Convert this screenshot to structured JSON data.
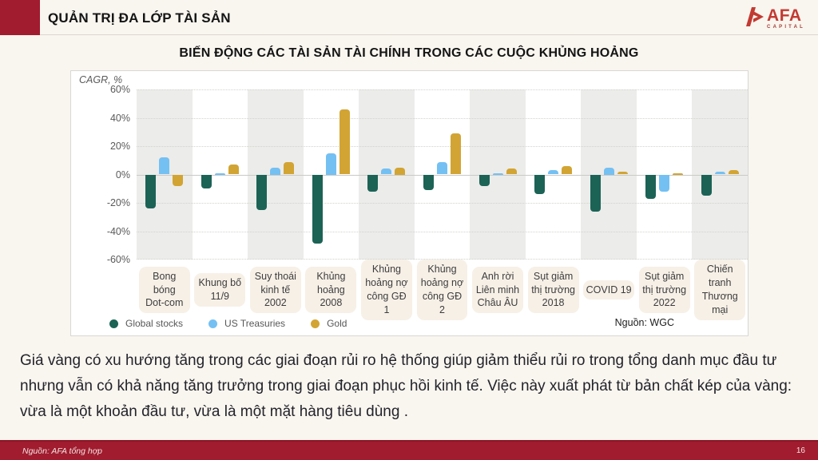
{
  "header": {
    "title": "QUẢN TRỊ ĐA LỚP TÀI SẢN",
    "logo": {
      "main": "AFA",
      "sub": "CAPITAL"
    }
  },
  "chart": {
    "title": "BIẾN ĐỘNG CÁC TÀI SẢN TÀI CHÍNH TRONG CÁC CUỘC KHỦNG HOẢNG",
    "axis_label": "CAGR, %",
    "source": "Nguồn: WGC"
  },
  "chart_data": {
    "type": "bar",
    "title": "BIẾN ĐỘNG CÁC TÀI SẢN TÀI CHÍNH TRONG CÁC CUỘC KHỦNG HOẢNG",
    "ylabel": "CAGR, %",
    "ylim": [
      -60,
      60
    ],
    "yticks": [
      60,
      40,
      20,
      0,
      -20,
      -40,
      -60
    ],
    "grid": true,
    "legend_position": "bottom-left",
    "categories": [
      "Bong bóng\nDot-com",
      "Khung bố\n11/9",
      "Suy thoái\nkinh tế\n2002",
      "Khủng\nhoảng 2008",
      "Khủng\nhoảng nợ\ncông GĐ 1",
      "Khủng\nhoảng nợ\ncông GĐ 2",
      "Anh rời\nLiên minh\nChâu ÂU",
      "Sụt giảm\nthị trường\n2018",
      "COVID 19",
      "Sụt giảm\nthị trường\n2022",
      "Chiến tranh\nThương mại"
    ],
    "series": [
      {
        "name": "Global stocks",
        "color": "#1C6356",
        "values": [
          -24,
          -10,
          -25,
          -49,
          -12,
          -11,
          -8,
          -14,
          -26,
          -17,
          -15
        ]
      },
      {
        "name": "US Treasuries",
        "color": "#74C0F3",
        "values": [
          12,
          1,
          5,
          15,
          4,
          9,
          1,
          3,
          5,
          -12,
          2
        ]
      },
      {
        "name": "Gold",
        "color": "#D2A433",
        "values": [
          -8,
          7,
          9,
          46,
          5,
          29,
          4,
          6,
          2,
          1,
          3
        ]
      }
    ]
  },
  "body": {
    "paragraph": "Giá vàng có xu hướng tăng trong các giai đoạn rủi ro hệ thống giúp giảm thiểu rủi ro trong tổng danh mục đầu tư nhưng vẫn có khả năng tăng trưởng trong giai đoạn phục hồi kinh tế. Việc này xuất phát từ bản chất kép của vàng: vừa là một khoản đầu tư, vừa là một mặt hàng tiêu dùng ."
  },
  "footer": {
    "source": "Nguồn: AFA tổng hợp",
    "page": "16"
  },
  "colors": {
    "accent_red": "#A01C2E",
    "logo_red": "#C23A32",
    "band_gray": "#ECECEA",
    "label_box": "#F7F0E7",
    "slide_bg": "#F9F5EF"
  }
}
